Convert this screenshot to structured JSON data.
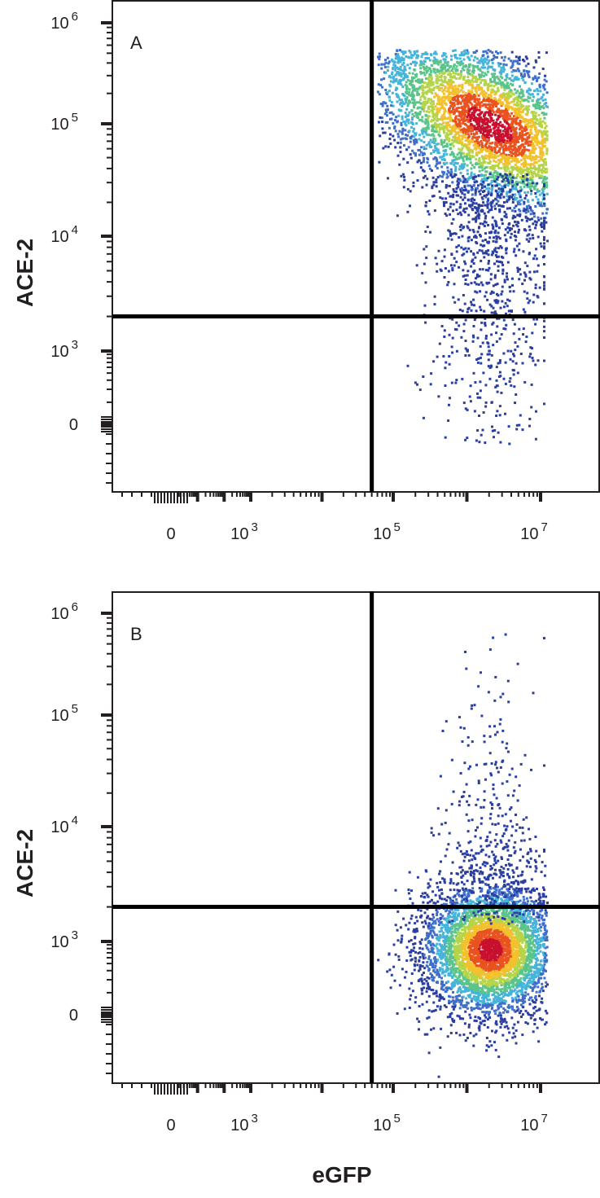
{
  "chart_data": [
    {
      "type": "scatter",
      "panel_label": "A",
      "xlabel": "eGFP",
      "ylabel": "ACE-2",
      "x_ticks": [
        {
          "base": "0",
          "exp": ""
        },
        {
          "base": "10",
          "exp": "3"
        },
        {
          "base": "10",
          "exp": "5"
        },
        {
          "base": "10",
          "exp": "7"
        }
      ],
      "y_ticks": [
        {
          "base": "0",
          "exp": ""
        },
        {
          "base": "10",
          "exp": "3"
        },
        {
          "base": "10",
          "exp": "4"
        },
        {
          "base": "10",
          "exp": "5"
        },
        {
          "base": "10",
          "exp": "6"
        }
      ],
      "x_scale": "biexponential",
      "y_scale": "biexponential",
      "quadrant_gate": {
        "x": 50000,
        "y": 2000
      },
      "population": {
        "main_cluster_center": {
          "x": 2000000,
          "y": 100000
        },
        "orientation": "diagonal, increasing ACE-2 with increasing eGFP",
        "cluster_ellipse": {
          "rx": 1.8,
          "ry": 2.4,
          "angle_deg": -58
        },
        "tail": "sparse cells extending down toward ACE-2 ~ 0 and into lower-right quadrant",
        "quadrant_fraction": {
          "upper_right": 0.93,
          "lower_right": 0.06,
          "upper_left": 0.005,
          "lower_left": 0.005
        }
      },
      "colormap": [
        "#2b3fa0",
        "#3f6fc9",
        "#46b3d8",
        "#5ac48a",
        "#b5d44a",
        "#f2c12e",
        "#e8531f",
        "#c8102e"
      ],
      "grid": false,
      "legend": "none"
    },
    {
      "type": "scatter",
      "panel_label": "B",
      "xlabel": "eGFP",
      "ylabel": "ACE-2",
      "x_ticks": [
        {
          "base": "0",
          "exp": ""
        },
        {
          "base": "10",
          "exp": "3"
        },
        {
          "base": "10",
          "exp": "5"
        },
        {
          "base": "10",
          "exp": "7"
        }
      ],
      "y_ticks": [
        {
          "base": "0",
          "exp": ""
        },
        {
          "base": "10",
          "exp": "3"
        },
        {
          "base": "10",
          "exp": "4"
        },
        {
          "base": "10",
          "exp": "5"
        },
        {
          "base": "10",
          "exp": "6"
        }
      ],
      "x_scale": "biexponential",
      "y_scale": "biexponential",
      "quadrant_gate": {
        "x": 50000,
        "y": 2000
      },
      "population": {
        "main_cluster_center": {
          "x": 2000000,
          "y": 500
        },
        "orientation": "roughly round cluster, low ACE-2",
        "cluster_ellipse": {
          "rx": 1.7,
          "ry": 1.1,
          "angle_deg": 0
        },
        "tail": "sparse cells scattered upward into the upper-right quadrant",
        "quadrant_fraction": {
          "upper_right": 0.05,
          "lower_right": 0.94,
          "upper_left": 0.003,
          "lower_left": 0.007
        }
      },
      "colormap": [
        "#2b3fa0",
        "#3f6fc9",
        "#46b3d8",
        "#5ac48a",
        "#b5d44a",
        "#f2c12e",
        "#e8531f",
        "#c8102e"
      ],
      "grid": false,
      "legend": "none"
    }
  ],
  "figure": {
    "shared_xlabel": "eGFP"
  }
}
